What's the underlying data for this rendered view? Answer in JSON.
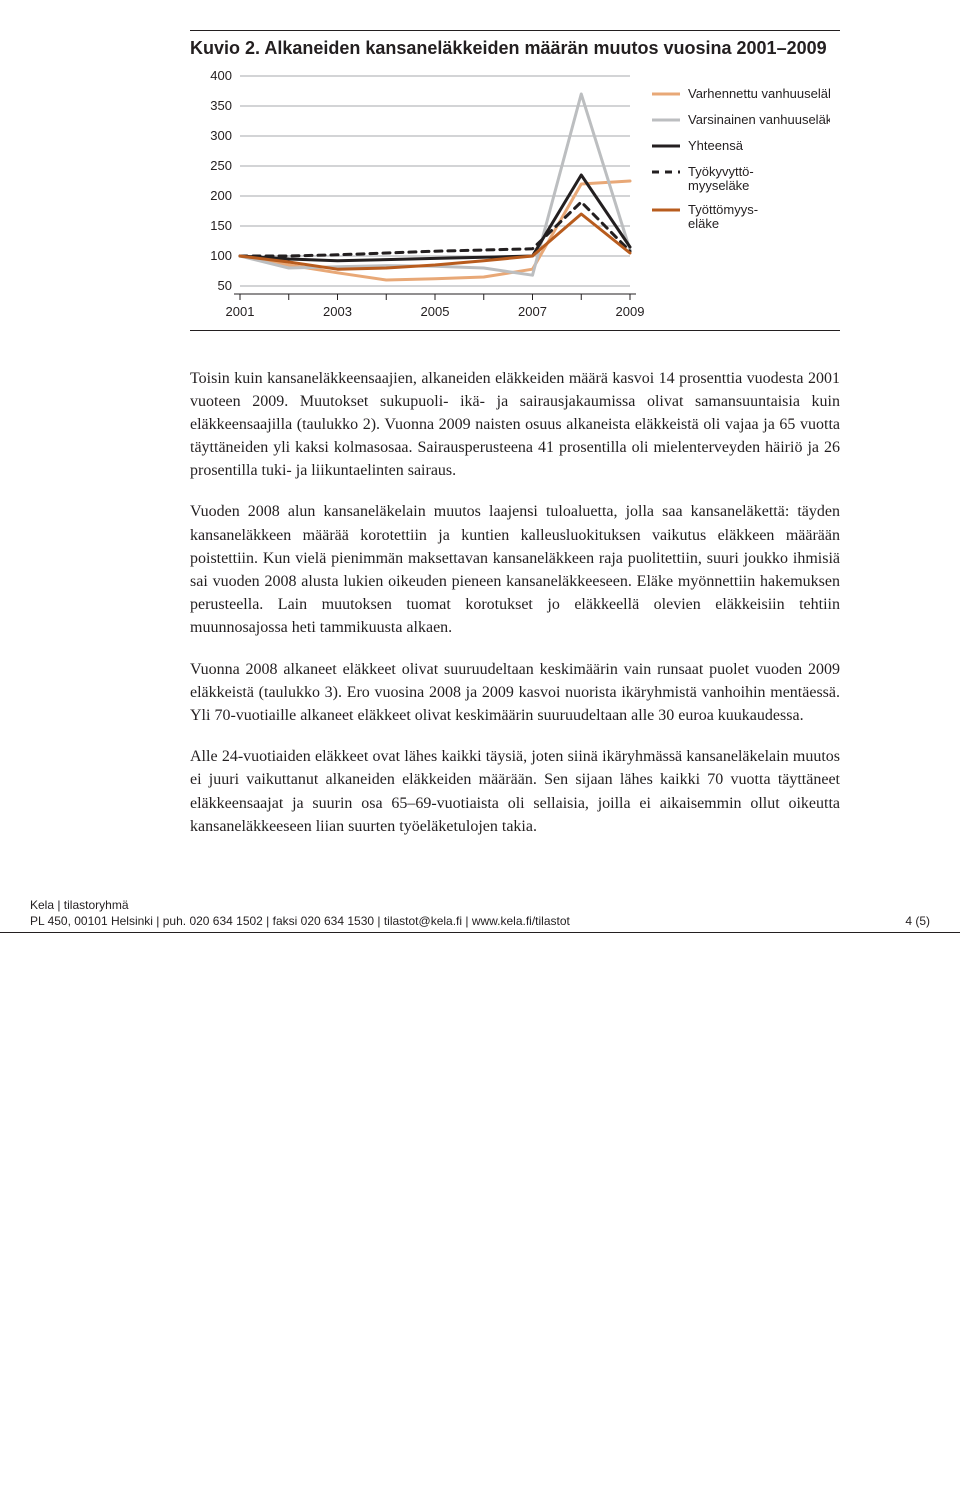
{
  "chart": {
    "type": "line",
    "title": "Kuvio 2. Alkaneiden kansaneläkkeiden määrän muutos vuosina 2001–2009",
    "x_categories": [
      "2001",
      "2003",
      "2005",
      "2007",
      "2009"
    ],
    "x_ticks_n": 9,
    "yticks": [
      50,
      100,
      150,
      200,
      250,
      300,
      350,
      400
    ],
    "ylim": [
      50,
      400
    ],
    "grid_color": "#a7a9ac",
    "grid_width": 1,
    "axis_color": "#231f20",
    "background_color": "#ffffff",
    "series": [
      {
        "name": "Varhennettu vanhuuseläke",
        "color": "#e8a877",
        "width": 3,
        "dash": "",
        "values": [
          100,
          85,
          72,
          60,
          62,
          65,
          78,
          220,
          225
        ]
      },
      {
        "name": "Varsinainen vanhuuseläke",
        "color": "#bcbec0",
        "width": 3,
        "dash": "",
        "values": [
          100,
          80,
          82,
          84,
          83,
          80,
          68,
          370,
          110
        ]
      },
      {
        "name": "Yhteensä",
        "color": "#231f20",
        "width": 3,
        "dash": "",
        "values": [
          100,
          95,
          92,
          94,
          96,
          98,
          100,
          235,
          115
        ]
      },
      {
        "name": "Työkyvyttö-\nmyyseläke",
        "color": "#231f20",
        "width": 3,
        "dash": "7 6",
        "values": [
          100,
          100,
          102,
          105,
          108,
          110,
          112,
          190,
          108
        ]
      },
      {
        "name": "Työttömyys-\neläke",
        "color": "#b85c1e",
        "width": 3,
        "dash": "",
        "values": [
          100,
          90,
          78,
          80,
          85,
          92,
          100,
          170,
          105
        ]
      }
    ],
    "legend_labels": [
      "Varhennettu",
      "vanhuuseläke",
      "Varsinainen",
      "vanhuuseläke",
      "Yhteensä",
      "Työkyvyttö-",
      "myyseläke",
      "Työttömyys-",
      "eläke"
    ]
  },
  "paragraphs": [
    "Toisin kuin kansaneläkkeensaajien, alkaneiden eläkkeiden määrä kasvoi 14 prosenttia vuodesta 2001 vuoteen 2009. Muutokset sukupuoli- ikä- ja sairausjakaumissa olivat samansuuntaisia kuin eläkkeensaajilla (taulukko 2). Vuonna 2009 naisten osuus alkaneista eläkkeistä oli vajaa ja 65 vuotta täyttäneiden yli kaksi kolmasosaa. Sairausperusteena 41 prosentilla oli mielenterveyden häiriö ja 26 prosentilla tuki- ja liikuntaelinten sairaus.",
    "Vuoden 2008 alun kansaneläkelain muutos laajensi tuloaluetta, jolla saa kansaneläkettä: täyden kansaneläkkeen määrää korotettiin ja kuntien kalleusluokituksen vaikutus eläkkeen määrään poistettiin. Kun vielä pienimmän maksettavan kansaneläkkeen raja puolitettiin, suuri joukko ihmisiä sai vuoden 2008 alusta lukien oikeuden pieneen kansaneläkkeeseen. Eläke myönnettiin hakemuksen perusteella. Lain muutoksen tuomat korotukset jo eläkkeellä olevien eläkkeisiin tehtiin muunnosajossa heti tammikuusta alkaen.",
    "Vuonna 2008 alkaneet eläkkeet olivat suuruudeltaan keskimäärin vain runsaat puolet vuoden 2009 eläkkeistä (taulukko 3). Ero vuosina 2008 ja 2009 kasvoi nuorista ikäryhmistä vanhoihin mentäessä. Yli 70-vuotiaille alkaneet eläkkeet olivat keskimäärin suuruudeltaan alle 30 euroa kuukaudessa.",
    "Alle 24-vuotiaiden eläkkeet ovat lähes kaikki täysiä, joten siinä ikäryhmässä kansaneläkelain muutos ei juuri vaikuttanut alkaneiden eläkkeiden määrään. Sen sijaan lähes kaikki 70 vuotta täyttäneet eläkkeensaajat ja suurin osa 65–69-vuotiaista oli sellaisia, joilla ei aikaisemmin ollut oikeutta kansaneläkkeeseen liian suurten työeläketulojen takia."
  ],
  "footer": {
    "group": "Kela | tilastoryhmä",
    "contact": "PL 450, 00101 Helsinki | puh. 020 634 1502 | faksi 020 634 1530 | tilastot@kela.fi | www.kela.fi/tilastot",
    "page": "4 (5)"
  }
}
